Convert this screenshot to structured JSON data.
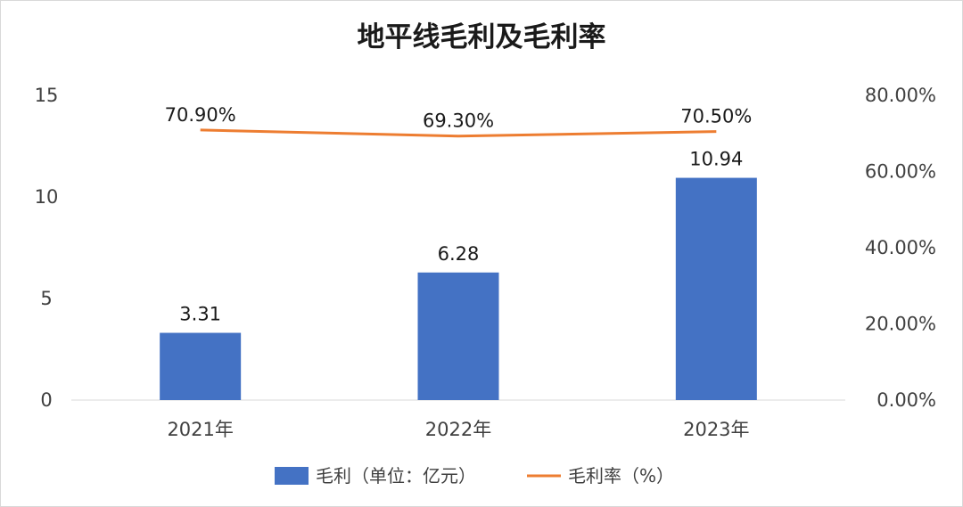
{
  "chart_data": {
    "type": "bar",
    "title": "地平线毛利及毛利率",
    "categories": [
      "2021年",
      "2022年",
      "2023年"
    ],
    "series": [
      {
        "name": "毛利（单位：亿元）",
        "kind": "bar",
        "axis": "left",
        "color": "#4472C4",
        "values": [
          3.31,
          6.28,
          10.94
        ],
        "labels": [
          "3.31",
          "6.28",
          "10.94"
        ]
      },
      {
        "name": "毛利率（%）",
        "kind": "line",
        "axis": "right",
        "color": "#ED7D31",
        "values": [
          70.9,
          69.3,
          70.5
        ],
        "labels": [
          "70.90%",
          "69.30%",
          "70.50%"
        ]
      }
    ],
    "y_left": {
      "range": [
        0,
        15
      ],
      "ticks": [
        0,
        5,
        10,
        15
      ],
      "tick_labels": [
        "0",
        "5",
        "10",
        "15"
      ]
    },
    "y_right": {
      "range": [
        0,
        80
      ],
      "ticks": [
        0,
        20,
        40,
        60,
        80
      ],
      "tick_labels": [
        "0.00%",
        "20.00%",
        "40.00%",
        "60.00%",
        "80.00%"
      ]
    },
    "grid": false,
    "legend_position": "bottom"
  }
}
